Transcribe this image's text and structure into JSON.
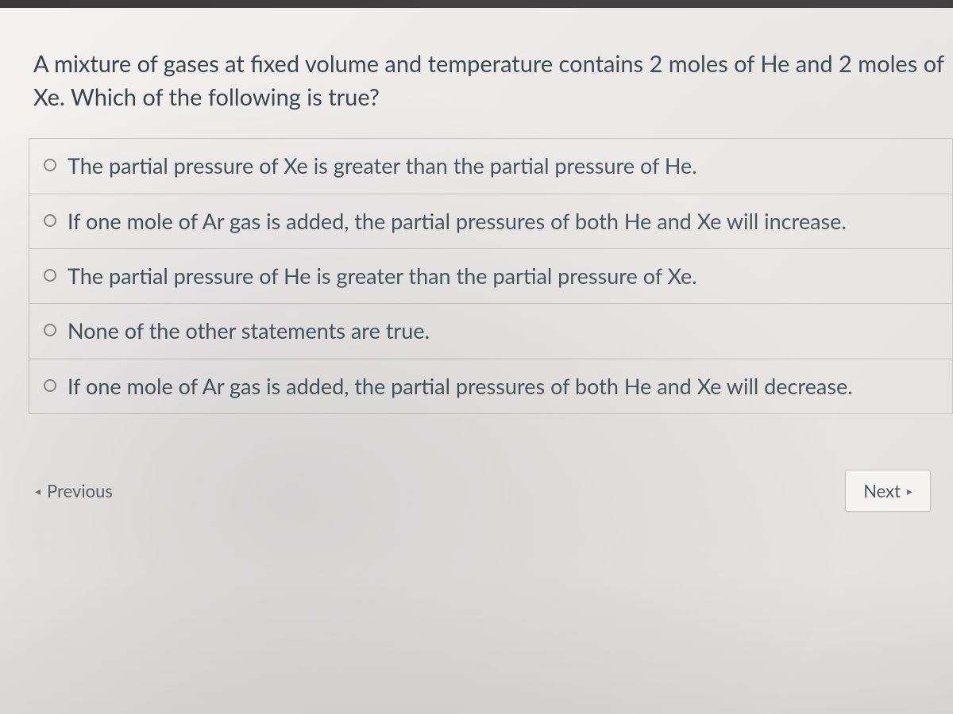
{
  "question": {
    "prompt": "A mixture of gases at fixed volume and temperature contains 2 moles of He and 2 moles of Xe.  Which of the following is true?"
  },
  "answers": [
    {
      "text": "The partial pressure of Xe is greater than the partial pressure of He."
    },
    {
      "text": "If one mole of Ar gas is added, the partial pressures of both He and Xe will increase."
    },
    {
      "text": "The partial pressure of He is greater than the partial pressure of Xe."
    },
    {
      "text": "None of the other statements are true."
    },
    {
      "text": "If one mole of Ar gas is added, the partial pressures of both He and Xe will decrease."
    }
  ],
  "nav": {
    "previous_label": "Previous",
    "next_label": "Next"
  },
  "colors": {
    "text_primary": "#37424a",
    "text_answer": "#405058",
    "border": "#c8c6c4",
    "radio_border": "#8a8886",
    "background": "#f0eeed"
  },
  "typography": {
    "question_fontsize": 29,
    "answer_fontsize": 27,
    "nav_fontsize": 22
  }
}
